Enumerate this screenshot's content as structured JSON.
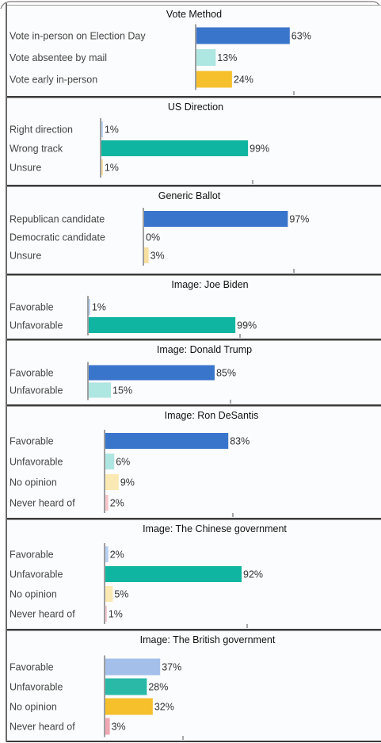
{
  "chart_data": [
    {
      "type": "bar",
      "title": "Vote Method",
      "categories": [
        "Vote in-person on Election Day",
        "Vote absentee by mail",
        "Vote early in-person"
      ],
      "values": [
        63,
        13,
        24
      ],
      "value_suffix": "%",
      "colors": [
        "#3a75cc",
        "#aee6e1",
        "#f6c02c"
      ],
      "xlim": [
        0,
        100
      ],
      "orientation": "horizontal"
    },
    {
      "type": "bar",
      "title": "US Direction",
      "categories": [
        "Right direction",
        "Wrong track",
        "Unsure"
      ],
      "values": [
        1,
        99,
        1
      ],
      "value_suffix": "%",
      "colors": [
        "#b8d0f0",
        "#0fb5a0",
        "#f7dfa0"
      ],
      "xlim": [
        0,
        100
      ],
      "orientation": "horizontal"
    },
    {
      "type": "bar",
      "title": "Generic Ballot",
      "categories": [
        "Republican candidate",
        "Democratic candidate",
        "Unsure"
      ],
      "values": [
        97,
        0,
        3
      ],
      "value_suffix": "%",
      "colors": [
        "#3a75cc",
        "#8aa0d8",
        "#f7dfa0"
      ],
      "xlim": [
        0,
        100
      ],
      "orientation": "horizontal"
    },
    {
      "type": "bar",
      "title": "Image: Joe Biden",
      "categories": [
        "Favorable",
        "Unfavorable"
      ],
      "values": [
        1,
        99
      ],
      "value_suffix": "%",
      "colors": [
        "#b8d0f0",
        "#0fb5a0"
      ],
      "xlim": [
        0,
        100
      ],
      "orientation": "horizontal"
    },
    {
      "type": "bar",
      "title": "Image: Donald Trump",
      "categories": [
        "Favorable",
        "Unfavorable"
      ],
      "values": [
        85,
        15
      ],
      "value_suffix": "%",
      "colors": [
        "#3a75cc",
        "#aee6e1"
      ],
      "xlim": [
        0,
        100
      ],
      "orientation": "horizontal"
    },
    {
      "type": "bar",
      "title": "Image: Ron DeSantis",
      "categories": [
        "Favorable",
        "Unfavorable",
        "No opinion",
        "Never heard of"
      ],
      "values": [
        83,
        6,
        9,
        2
      ],
      "value_suffix": "%",
      "colors": [
        "#3a75cc",
        "#aee6e1",
        "#fbe9b4",
        "#f6c6cc"
      ],
      "xlim": [
        0,
        100
      ],
      "orientation": "horizontal"
    },
    {
      "type": "bar",
      "title": "Image: The Chinese government",
      "categories": [
        "Favorable",
        "Unfavorable",
        "No opinion",
        "Never heard of"
      ],
      "values": [
        2,
        92,
        5,
        1
      ],
      "value_suffix": "%",
      "colors": [
        "#b8d0f0",
        "#0fb5a0",
        "#fbe9b4",
        "#f6c6cc"
      ],
      "xlim": [
        0,
        100
      ],
      "orientation": "horizontal"
    },
    {
      "type": "bar",
      "title": "Image: The British government",
      "categories": [
        "Favorable",
        "Unfavorable",
        "No opinion",
        "Never heard of"
      ],
      "values": [
        37,
        28,
        32,
        3
      ],
      "value_suffix": "%",
      "colors": [
        "#a4c0ea",
        "#29b9a6",
        "#f6c02c",
        "#f0a8b4"
      ],
      "xlim": [
        0,
        100
      ],
      "orientation": "horizontal"
    }
  ]
}
